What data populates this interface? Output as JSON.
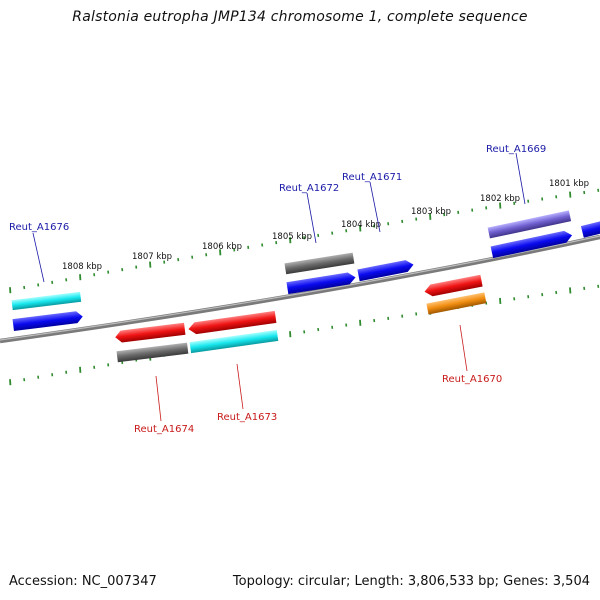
{
  "title": "Ralstonia eutropha JMP134 chromosome 1, complete sequence",
  "footer": {
    "accession": "Accession: NC_007347",
    "summary": "Topology: circular; Length: 3,806,533 bp; Genes: 3,504"
  },
  "colors": {
    "backbone": "#8a8a8a",
    "tick": "#2e8b2e",
    "forward_label": "#1a1aa8",
    "reverse_label": "#c81a1a",
    "blue": "#0a0af0",
    "cyan": "#18e8ee",
    "red": "#f01414",
    "gray": "#6a6a6a",
    "purple": "#7060d0",
    "orange": "#f08c10"
  },
  "kbp_labels": [
    "1808 kbp",
    "1807 kbp",
    "1806 kbp",
    "1805 kbp",
    "1804 kbp",
    "1803 kbp",
    "1802 kbp",
    "1801 kbp"
  ],
  "gene_labels": {
    "Reut_A1676": "Reut_A1676",
    "Reut_A1672": "Reut_A1672",
    "Reut_A1671": "Reut_A1671",
    "Reut_A1669": "Reut_A1669",
    "Reut_A1674": "Reut_A1674",
    "Reut_A1673": "Reut_A1673",
    "Reut_A1670": "Reut_A1670"
  }
}
